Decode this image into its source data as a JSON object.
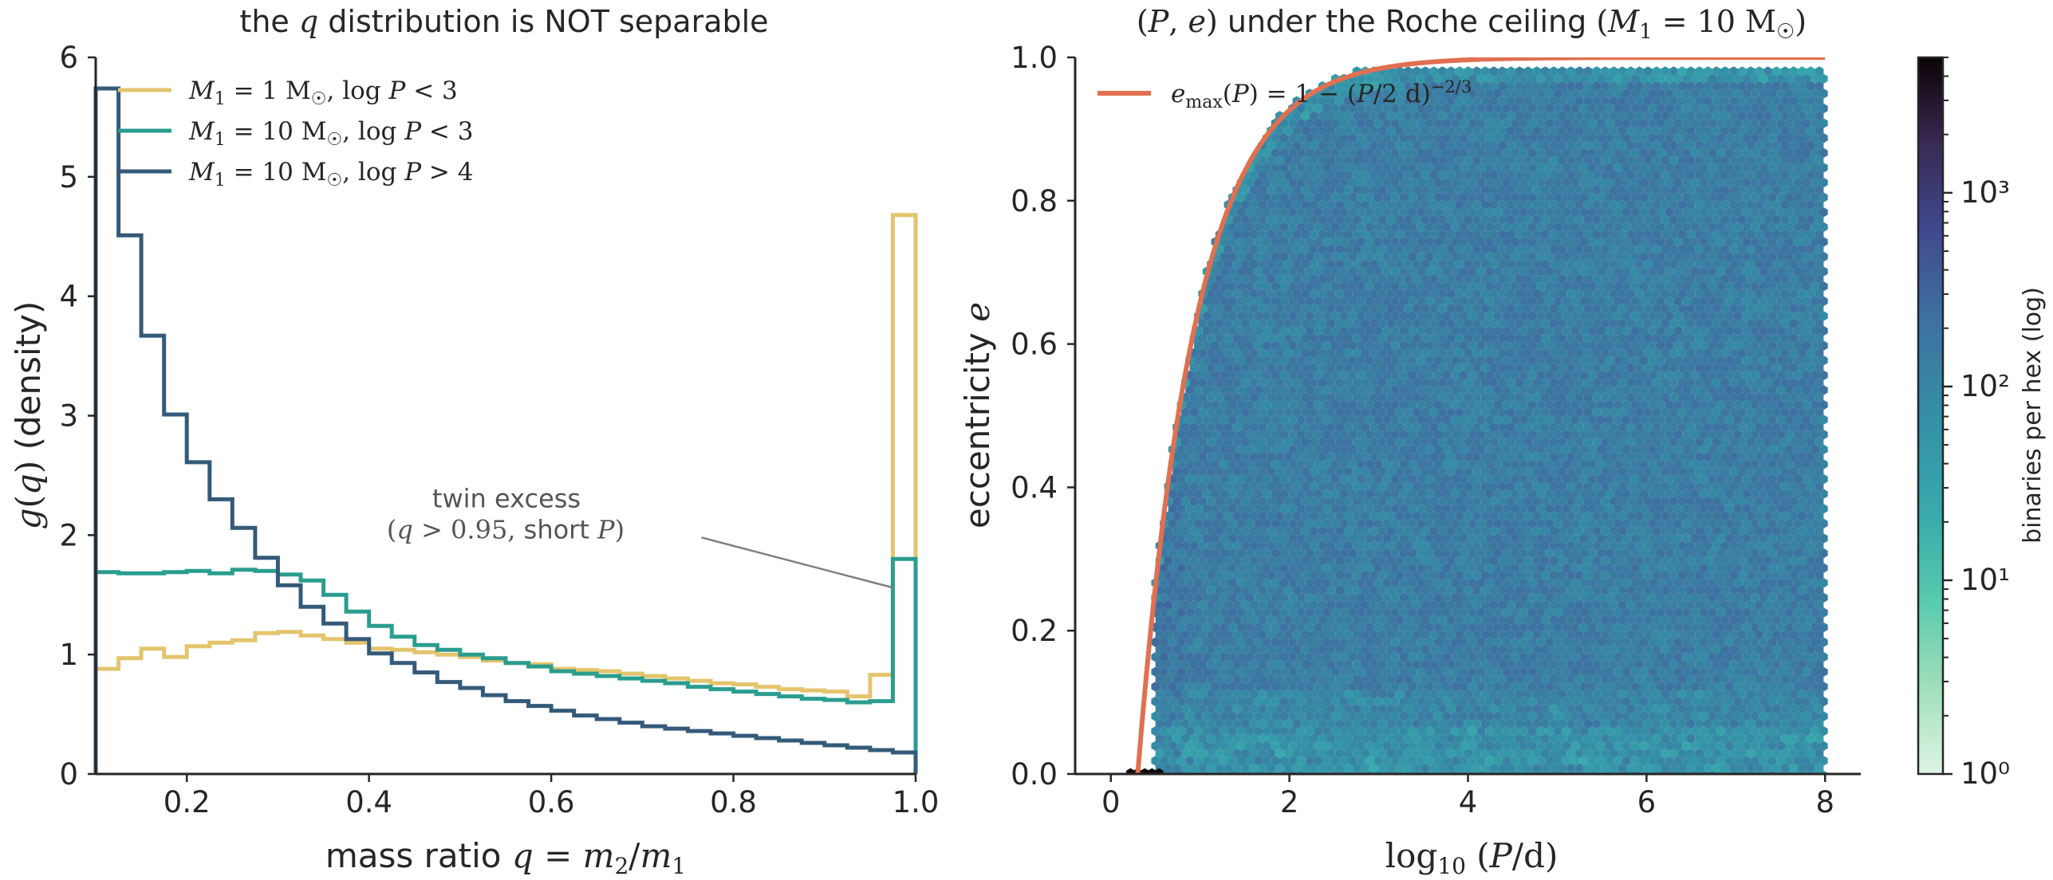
{
  "chart_data": [
    {
      "type": "histogram-step",
      "title": "the q distribution is NOT separable",
      "xlabel": "mass ratio q = m₂/m₁",
      "ylabel": "g(q)  (density)",
      "xlim": [
        0.1,
        1.0
      ],
      "ylim": [
        0,
        6
      ],
      "xticks": [
        "0.2",
        "0.4",
        "0.6",
        "0.8",
        "1.0"
      ],
      "yticks": [
        "0",
        "1",
        "2",
        "3",
        "4",
        "5",
        "6"
      ],
      "legend_position": "upper-left",
      "bin_edges": [
        0.1,
        0.125,
        0.15,
        0.175,
        0.2,
        0.225,
        0.25,
        0.275,
        0.3,
        0.325,
        0.35,
        0.375,
        0.4,
        0.425,
        0.45,
        0.475,
        0.5,
        0.525,
        0.55,
        0.575,
        0.6,
        0.625,
        0.65,
        0.675,
        0.7,
        0.725,
        0.75,
        0.775,
        0.8,
        0.825,
        0.85,
        0.875,
        0.9,
        0.925,
        0.95,
        0.975,
        1.0
      ],
      "series": [
        {
          "name": "M₁ = 1 M☉, log P < 3",
          "color": "#e4c46c",
          "values": [
            0.88,
            0.97,
            1.05,
            0.98,
            1.07,
            1.1,
            1.12,
            1.18,
            1.19,
            1.16,
            1.13,
            1.1,
            1.05,
            1.04,
            1.02,
            1.0,
            0.98,
            0.95,
            0.93,
            0.92,
            0.88,
            0.87,
            0.86,
            0.84,
            0.82,
            0.8,
            0.78,
            0.76,
            0.75,
            0.73,
            0.71,
            0.7,
            0.69,
            0.65,
            0.83,
            4.68,
            4.64
          ]
        },
        {
          "name": "M₁ = 10 M☉, log P < 3",
          "color": "#2a9d8f",
          "values": [
            1.69,
            1.68,
            1.68,
            1.69,
            1.7,
            1.68,
            1.71,
            1.7,
            1.67,
            1.62,
            1.5,
            1.36,
            1.24,
            1.15,
            1.08,
            1.04,
            1.0,
            0.97,
            0.93,
            0.9,
            0.86,
            0.84,
            0.82,
            0.8,
            0.78,
            0.76,
            0.73,
            0.71,
            0.69,
            0.67,
            0.65,
            0.63,
            0.62,
            0.6,
            0.61,
            1.8,
            1.79
          ]
        },
        {
          "name": "M₁ = 10 M☉, log P > 4",
          "color": "#345a7a",
          "values": [
            5.74,
            4.51,
            3.67,
            3.01,
            2.61,
            2.3,
            2.06,
            1.81,
            1.58,
            1.4,
            1.26,
            1.13,
            1.01,
            0.93,
            0.85,
            0.77,
            0.72,
            0.66,
            0.61,
            0.57,
            0.53,
            0.49,
            0.46,
            0.43,
            0.4,
            0.38,
            0.36,
            0.34,
            0.32,
            0.3,
            0.28,
            0.26,
            0.24,
            0.22,
            0.2,
            0.18,
            0.17
          ]
        }
      ],
      "annotation": {
        "text_line1": "twin excess",
        "text_line2": "(q > 0.95, short P)",
        "point": [
          0.975,
          1.56
        ],
        "text_at": [
          0.55,
          2.0
        ]
      }
    },
    {
      "type": "hexbin",
      "title": "(P, e) under the Roche ceiling (M₁ = 10 M☉)",
      "xlabel": "log₁₀ (P/d)",
      "ylabel": "eccentricity e",
      "xlim": [
        -0.4,
        8.4
      ],
      "ylim": [
        0,
        1.0
      ],
      "xticks": [
        "0",
        "2",
        "4",
        "6",
        "8"
      ],
      "yticks": [
        "0.0",
        "0.2",
        "0.4",
        "0.6",
        "0.8",
        "1.0"
      ],
      "grid": false,
      "legend_position": "upper-left",
      "colormap": "mako_r",
      "colorbar_label": "binaries per hex (log)",
      "colorbar_scale": "log",
      "colorbar_range": [
        1,
        5000
      ],
      "colorbar_ticks": [
        "10⁰",
        "10¹",
        "10²",
        "10³"
      ],
      "populated_region": "log P from 0.5 to 8, e from 0 up to e_max(P)",
      "typical_count_per_hex": 150,
      "curve": {
        "name": "e_max(P) = 1 − (P/2 d)^(−2/3)",
        "color": "#e07050",
        "formula": "1 - (10^x / 2)^(-2/3)",
        "x_range": [
          0.30103,
          8.0
        ]
      }
    }
  ]
}
